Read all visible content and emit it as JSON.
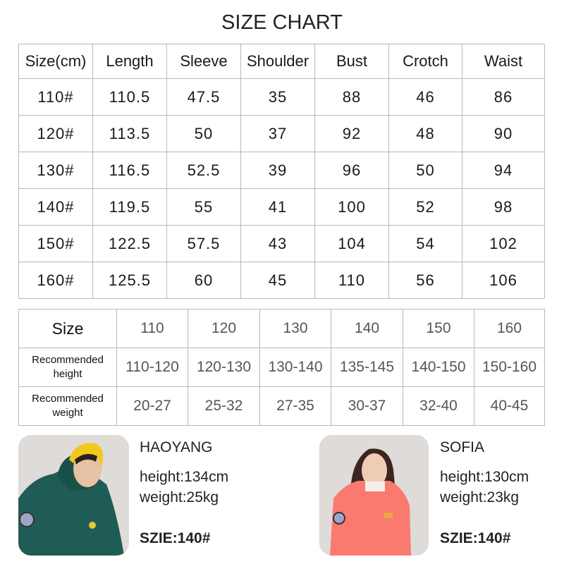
{
  "title": "SIZE CHART",
  "measure_table": {
    "headers": [
      "Size(cm)",
      "Length",
      "Sleeve",
      "Shoulder",
      "Bust",
      "Crotch",
      "Waist"
    ],
    "rows": [
      [
        "110#",
        "110.5",
        "47.5",
        "35",
        "88",
        "46",
        "86"
      ],
      [
        "120#",
        "113.5",
        "50",
        "37",
        "92",
        "48",
        "90"
      ],
      [
        "130#",
        "116.5",
        "52.5",
        "39",
        "96",
        "50",
        "94"
      ],
      [
        "140#",
        "119.5",
        "55",
        "41",
        "100",
        "52",
        "98"
      ],
      [
        "150#",
        "122.5",
        "57.5",
        "43",
        "104",
        "54",
        "102"
      ],
      [
        "160#",
        "125.5",
        "60",
        "45",
        "110",
        "56",
        "106"
      ]
    ]
  },
  "recommend_table": {
    "size_label": "Size",
    "sizes": [
      "110",
      "120",
      "130",
      "140",
      "150",
      "160"
    ],
    "height_label": "Recommended height",
    "heights": [
      "110-120",
      "120-130",
      "130-140",
      "135-145",
      "140-150",
      "150-160"
    ],
    "weight_label": "Recommended weight",
    "weights": [
      "20-27",
      "25-32",
      "27-35",
      "30-37",
      "32-40",
      "40-45"
    ]
  },
  "models": [
    {
      "name": "HAOYANG",
      "height": "height:134cm",
      "weight": "weight:25kg",
      "size": "SZIE:140#",
      "jacket_color": "#1f5c55",
      "hat_color": "#f2c81e"
    },
    {
      "name": "SOFIA",
      "height": "height:130cm",
      "weight": "weight:23kg",
      "size": "SZIE:140#",
      "jacket_color": "#fb7a70"
    }
  ]
}
